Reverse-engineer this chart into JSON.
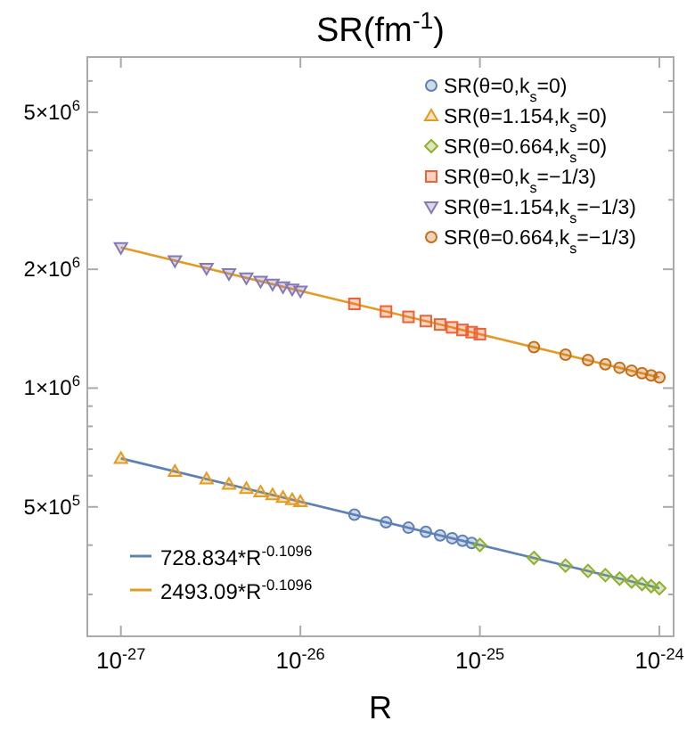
{
  "chart_data": {
    "type": "scatter",
    "title": "SR(fm$^{-1}$)",
    "xlabel": "R",
    "log": "xy",
    "grid": false,
    "legend": "top right",
    "xlim": [
      6.5e-28,
      1.2e-24
    ],
    "xticks": [
      {
        "value": 1e-27,
        "label": "10$^{-27}$"
      },
      {
        "value": 1e-26,
        "label": "10$^{-26}$"
      },
      {
        "value": 1e-25,
        "label": "10$^{-25}$"
      },
      {
        "value": 1e-24,
        "label": "10$^{-24}$"
      }
    ],
    "ylim": [
      235000,
      6900000
    ],
    "yticks": [
      {
        "value": 300000,
        "label": null
      },
      {
        "value": 400000,
        "label": null
      },
      {
        "value": 500000,
        "label": "5×10$^{5}$"
      },
      {
        "value": 600000,
        "label": null
      },
      {
        "value": 700000,
        "label": null
      },
      {
        "value": 800000,
        "label": null
      },
      {
        "value": 900000,
        "label": null
      },
      {
        "value": 1000000,
        "label": "1×10$^{6}$"
      },
      {
        "value": 2000000,
        "label": "2×10$^{6}$"
      },
      {
        "value": 3000000,
        "label": null
      },
      {
        "value": 4000000,
        "label": null
      },
      {
        "value": 5000000,
        "label": "5×10$^{6}$"
      },
      {
        "value": 6000000,
        "label": null
      }
    ],
    "series": [
      {
        "name": "SR(θ=0,k$_{s}$=0)",
        "color": "#5e81b5",
        "marker": "circle",
        "x": [
          2e-26,
          3e-26,
          4e-26,
          5e-26,
          6e-26,
          7e-26,
          8e-26,
          9e-26
        ],
        "values": [
          477800,
          457000,
          442900,
          432200,
          423600,
          416600,
          410400,
          405200
        ]
      },
      {
        "name": "SR(θ=1.154,k$_{s}$=0)",
        "color": "#e19c24",
        "marker": "triangle",
        "x": [
          1e-27,
          2e-27,
          3e-27,
          4e-27,
          5e-27,
          6e-27,
          7e-27,
          8e-27,
          9e-27,
          1e-26
        ],
        "values": [
          663500,
          615000,
          588200,
          570100,
          556300,
          545300,
          536200,
          528300,
          521500,
          515500
        ]
      },
      {
        "name": "SR(θ=0.664,k$_{s}$=0)",
        "color": "#8fb032",
        "marker": "diamond",
        "x": [
          1e-25,
          2e-25,
          3e-25,
          4e-25,
          5e-25,
          6e-25,
          7e-25,
          8e-25,
          9e-25,
          1e-24
        ],
        "values": [
          400500,
          371200,
          355000,
          344100,
          335800,
          329100,
          323600,
          318900,
          314800,
          311200
        ]
      },
      {
        "name": "SR(θ=0,k$_{s}$=−1/3)",
        "color": "#eb6235",
        "marker": "square",
        "x": [
          2e-26,
          3e-26,
          4e-26,
          5e-26,
          6e-26,
          7e-26,
          8e-26,
          9e-26,
          1e-25
        ],
        "values": [
          1634500,
          1563300,
          1515100,
          1478600,
          1449200,
          1425000,
          1404000,
          1386000,
          1370200
        ]
      },
      {
        "name": "SR(θ=1.154,k$_{s}$=−1/3)",
        "color": "#8778b3",
        "marker": "triangle-down",
        "x": [
          1e-27,
          2e-27,
          3e-27,
          4e-27,
          5e-27,
          6e-27,
          7e-27,
          8e-27,
          9e-27,
          1e-26
        ],
        "values": [
          2269500,
          2103600,
          2011900,
          1949900,
          1903000,
          1865100,
          1834000,
          1807000,
          1783800,
          1763400
        ]
      },
      {
        "name": "SR(θ=0.664,k$_{s}$=−1/3)",
        "color": "#c56e1a",
        "marker": "circle",
        "x": [
          2e-25,
          3e-25,
          4e-25,
          5e-25,
          6e-25,
          7e-25,
          8e-25,
          9e-25,
          1e-24
        ],
        "values": [
          1270000,
          1214700,
          1177300,
          1148900,
          1126000,
          1107200,
          1090900,
          1076900,
          1064600
        ]
      },
      {
        "name": "728.834*R$^{-0.1096}$",
        "type": "line",
        "color": "#5e81b5",
        "marker": "none",
        "x": [
          1e-27,
          1e-24
        ],
        "values": [
          663500,
          311200
        ]
      },
      {
        "name": "2493.09*R$^{-0.1096}$",
        "type": "line",
        "color": "#e19c24",
        "marker": "none",
        "x": [
          1e-27,
          1e-24
        ],
        "values": [
          2269500,
          1064600
        ]
      }
    ]
  }
}
